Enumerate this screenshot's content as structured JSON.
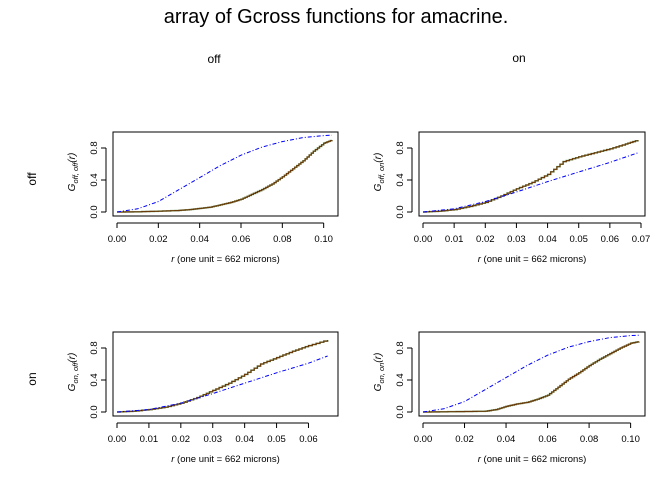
{
  "title": "array of Gcross functions for amacrine.",
  "col_labels": [
    "off",
    "on"
  ],
  "row_labels": [
    "off",
    "on"
  ],
  "chart_data": [
    {
      "type": "line",
      "row": "off",
      "col": "off",
      "ylabel_main": "G",
      "ylabel_sub": "off, off",
      "ylabel_tail": "(r)",
      "xlabel_var": "r",
      "xlabel_rest": "(one unit = 662 microns)",
      "xlim": [
        0,
        0.105
      ],
      "ylim": [
        0,
        0.95
      ],
      "xticks": [
        "0.00",
        "0.02",
        "0.04",
        "0.06",
        "0.08",
        "0.10"
      ],
      "xtick_values": [
        0,
        0.02,
        0.04,
        0.06,
        0.08,
        0.1
      ],
      "yticks": [
        "0.0",
        "0.4",
        "0.8"
      ],
      "ytick_values": [
        0,
        0.4,
        0.8
      ],
      "series": [
        {
          "style": "empirical",
          "color": "#6b3a0a",
          "x": [
            0,
            0.01,
            0.02,
            0.03,
            0.035,
            0.04,
            0.045,
            0.05,
            0.055,
            0.06,
            0.065,
            0.07,
            0.075,
            0.08,
            0.085,
            0.09,
            0.095,
            0.1,
            0.104
          ],
          "y": [
            0,
            0.003,
            0.01,
            0.02,
            0.03,
            0.045,
            0.06,
            0.09,
            0.12,
            0.16,
            0.22,
            0.28,
            0.35,
            0.44,
            0.54,
            0.64,
            0.76,
            0.86,
            0.9
          ]
        },
        {
          "style": "theoretical",
          "color": "#0000ff",
          "x": [
            0,
            0.01,
            0.02,
            0.03,
            0.04,
            0.05,
            0.06,
            0.07,
            0.08,
            0.09,
            0.1,
            0.104
          ],
          "y": [
            0,
            0.04,
            0.13,
            0.28,
            0.43,
            0.58,
            0.71,
            0.81,
            0.88,
            0.93,
            0.955,
            0.96
          ]
        }
      ]
    },
    {
      "type": "line",
      "row": "off",
      "col": "on",
      "ylabel_main": "G",
      "ylabel_sub": "off, on",
      "ylabel_tail": "(r)",
      "xlabel_var": "r",
      "xlabel_rest": "(one unit = 662 microns)",
      "xlim": [
        0,
        0.07
      ],
      "ylim": [
        0,
        0.95
      ],
      "xticks": [
        "0.00",
        "0.01",
        "0.02",
        "0.03",
        "0.04",
        "0.05",
        "0.06",
        "0.07"
      ],
      "xtick_values": [
        0,
        0.01,
        0.02,
        0.03,
        0.04,
        0.05,
        0.06,
        0.07
      ],
      "yticks": [
        "0.0",
        "0.4",
        "0.8"
      ],
      "ytick_values": [
        0,
        0.4,
        0.8
      ],
      "series": [
        {
          "style": "empirical",
          "color": "#6b3a0a",
          "x": [
            0,
            0.005,
            0.01,
            0.015,
            0.02,
            0.025,
            0.03,
            0.035,
            0.04,
            0.045,
            0.05,
            0.055,
            0.06,
            0.065,
            0.069
          ],
          "y": [
            0,
            0.01,
            0.03,
            0.07,
            0.12,
            0.2,
            0.29,
            0.37,
            0.47,
            0.63,
            0.69,
            0.74,
            0.79,
            0.85,
            0.9
          ]
        },
        {
          "style": "theoretical",
          "color": "#0000ff",
          "x": [
            0,
            0.01,
            0.02,
            0.03,
            0.04,
            0.05,
            0.06,
            0.069
          ],
          "y": [
            0,
            0.04,
            0.13,
            0.25,
            0.38,
            0.5,
            0.62,
            0.74
          ]
        }
      ]
    },
    {
      "type": "line",
      "row": "on",
      "col": "off",
      "ylabel_main": "G",
      "ylabel_sub": "on, off",
      "ylabel_tail": "(r)",
      "xlabel_var": "r",
      "xlabel_rest": "(one unit = 662 microns)",
      "xlim": [
        0,
        0.068
      ],
      "ylim": [
        0,
        0.95
      ],
      "xticks": [
        "0.00",
        "0.01",
        "0.02",
        "0.03",
        "0.04",
        "0.05",
        "0.06"
      ],
      "xtick_values": [
        0,
        0.01,
        0.02,
        0.03,
        0.04,
        0.05,
        0.06
      ],
      "yticks": [
        "0.0",
        "0.4",
        "0.8"
      ],
      "ytick_values": [
        0,
        0.4,
        0.8
      ],
      "series": [
        {
          "style": "empirical",
          "color": "#6b3a0a",
          "x": [
            0,
            0.005,
            0.01,
            0.015,
            0.02,
            0.025,
            0.03,
            0.035,
            0.04,
            0.045,
            0.05,
            0.055,
            0.06,
            0.066
          ],
          "y": [
            0,
            0.01,
            0.03,
            0.06,
            0.11,
            0.18,
            0.27,
            0.36,
            0.47,
            0.6,
            0.68,
            0.76,
            0.83,
            0.9
          ]
        },
        {
          "style": "theoretical",
          "color": "#0000ff",
          "x": [
            0,
            0.01,
            0.02,
            0.03,
            0.04,
            0.05,
            0.06,
            0.066
          ],
          "y": [
            0,
            0.03,
            0.11,
            0.23,
            0.36,
            0.49,
            0.61,
            0.7
          ]
        }
      ]
    },
    {
      "type": "line",
      "row": "on",
      "col": "on",
      "ylabel_main": "G",
      "ylabel_sub": "on, on",
      "ylabel_tail": "(r)",
      "xlabel_var": "r",
      "xlabel_rest": "(one unit = 662 microns)",
      "xlim": [
        0,
        0.105
      ],
      "ylim": [
        0,
        0.95
      ],
      "xticks": [
        "0.00",
        "0.02",
        "0.04",
        "0.06",
        "0.08",
        "0.10"
      ],
      "xtick_values": [
        0,
        0.02,
        0.04,
        0.06,
        0.08,
        0.1
      ],
      "yticks": [
        "0.0",
        "0.4",
        "0.8"
      ],
      "ytick_values": [
        0,
        0.4,
        0.8
      ],
      "series": [
        {
          "style": "empirical",
          "color": "#6b3a0a",
          "x": [
            0,
            0.01,
            0.02,
            0.03,
            0.035,
            0.04,
            0.045,
            0.05,
            0.055,
            0.06,
            0.065,
            0.07,
            0.075,
            0.08,
            0.085,
            0.09,
            0.095,
            0.1,
            0.104
          ],
          "y": [
            0,
            0.003,
            0.006,
            0.01,
            0.03,
            0.07,
            0.1,
            0.12,
            0.16,
            0.21,
            0.31,
            0.41,
            0.49,
            0.58,
            0.66,
            0.73,
            0.8,
            0.86,
            0.88
          ]
        },
        {
          "style": "theoretical",
          "color": "#0000ff",
          "x": [
            0,
            0.01,
            0.02,
            0.03,
            0.04,
            0.05,
            0.06,
            0.07,
            0.08,
            0.09,
            0.1,
            0.104
          ],
          "y": [
            0,
            0.04,
            0.13,
            0.28,
            0.43,
            0.58,
            0.71,
            0.81,
            0.88,
            0.93,
            0.955,
            0.96
          ]
        }
      ]
    }
  ]
}
